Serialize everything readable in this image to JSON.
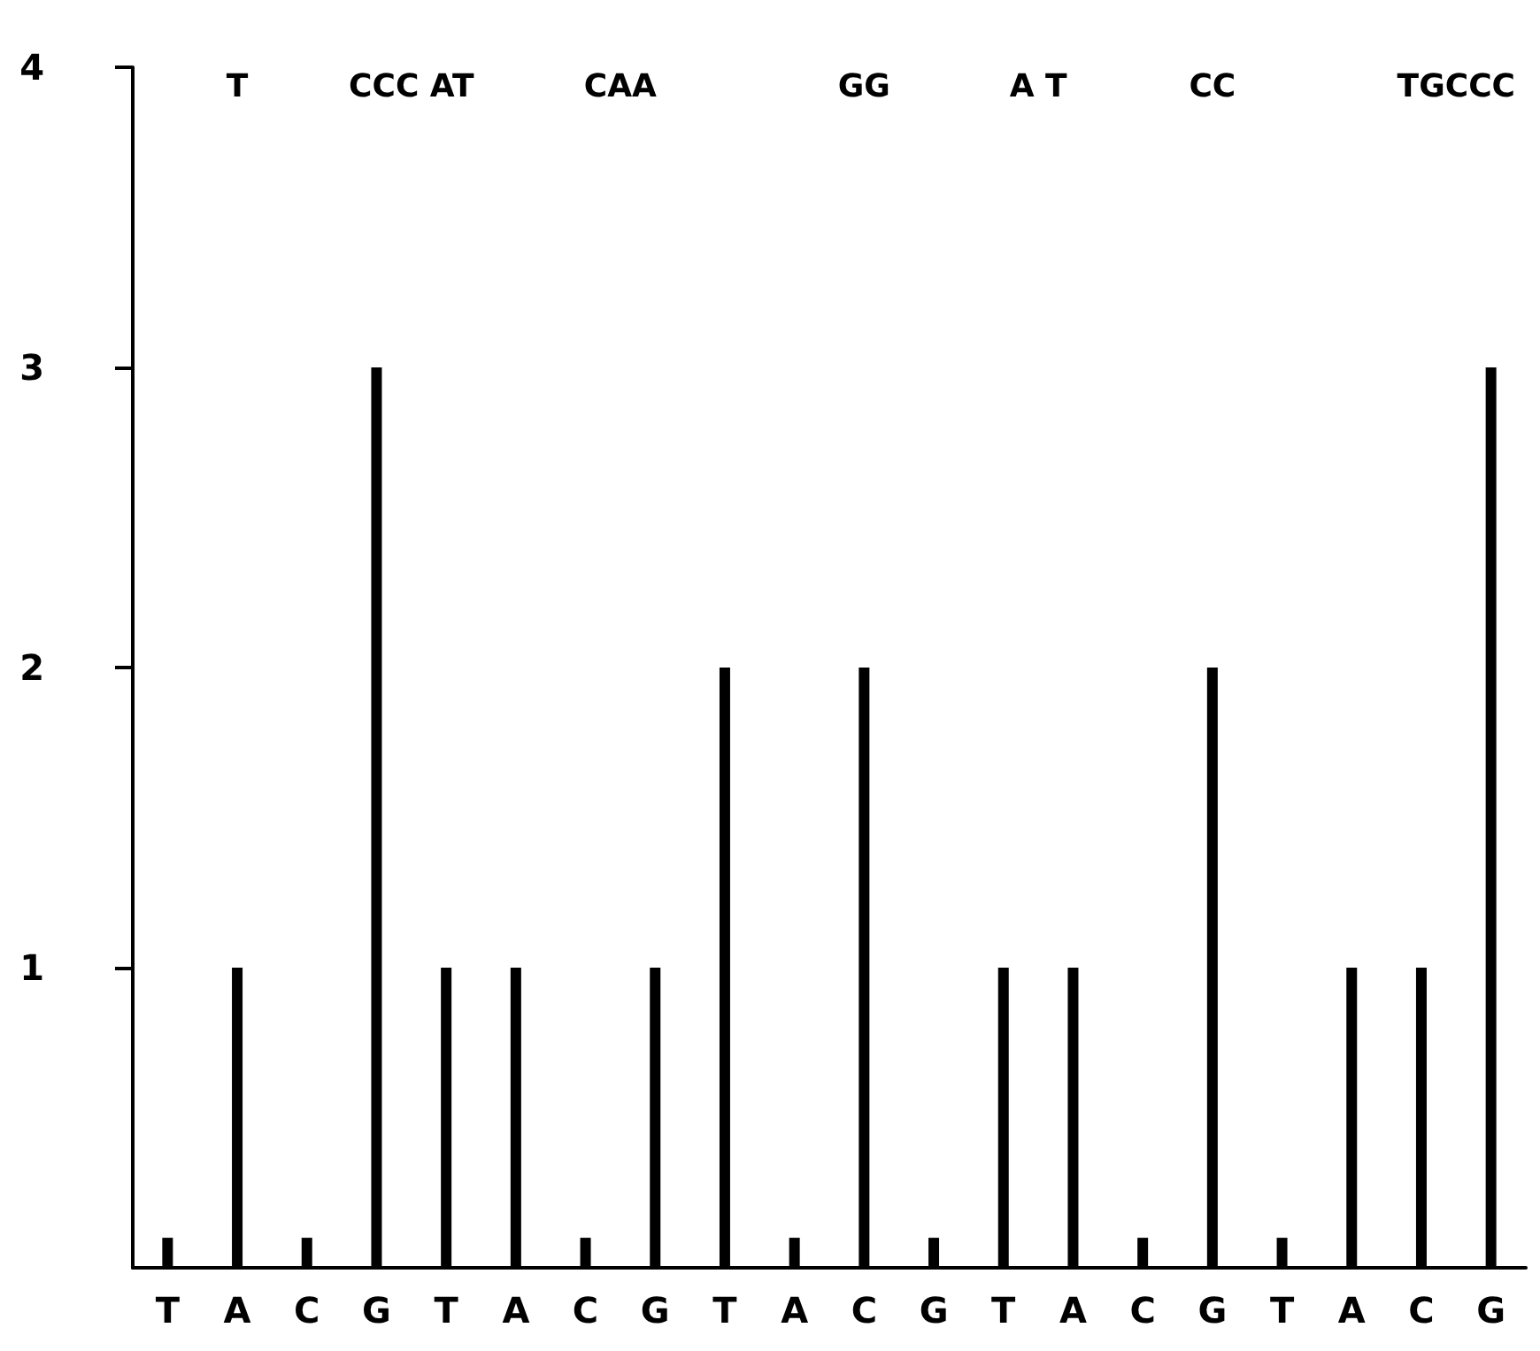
{
  "chart_data": {
    "type": "bar",
    "categories": [
      "T",
      "A",
      "C",
      "G",
      "T",
      "A",
      "C",
      "G",
      "T",
      "A",
      "C",
      "G",
      "T",
      "A",
      "C",
      "G",
      "T",
      "A",
      "C",
      "G"
    ],
    "values": [
      0.1,
      1,
      0.1,
      3,
      1,
      1,
      0.1,
      1,
      2,
      0.1,
      2,
      0.1,
      1,
      1,
      0.1,
      2,
      0.1,
      1,
      1,
      3
    ],
    "color": "#000000",
    "ylim": [
      0,
      4
    ],
    "yticks": [
      1,
      2,
      3,
      4
    ],
    "grid": false,
    "annotations": [
      "T",
      "CCC AT",
      "CAA",
      "GG",
      "A T",
      "CC",
      "TGCCC"
    ]
  }
}
